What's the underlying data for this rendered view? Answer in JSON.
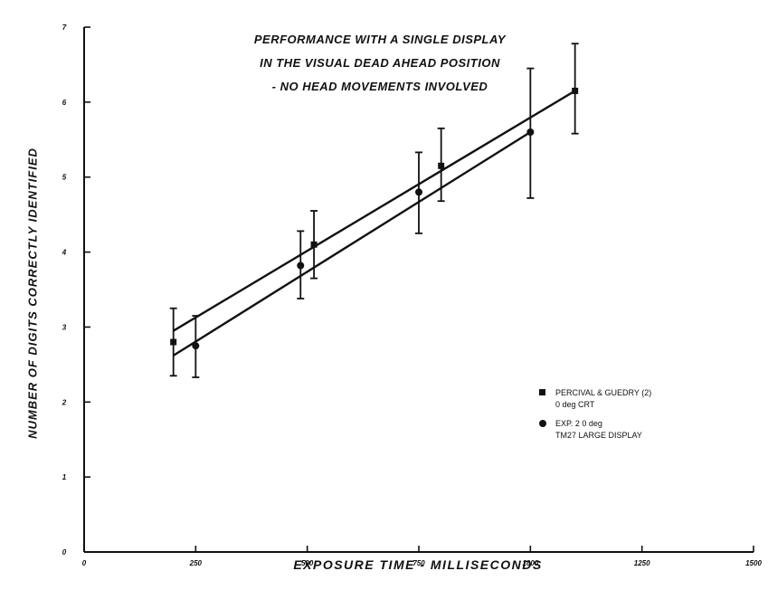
{
  "chart_data": {
    "type": "line",
    "title_lines": [
      "PERFORMANCE WITH A SINGLE DISPLAY",
      "IN THE VISUAL DEAD AHEAD POSITION",
      "- NO HEAD MOVEMENTS INVOLVED"
    ],
    "xlabel": "EXPOSURE TIME - MILLISECONDS",
    "ylabel": "NUMBER OF DIGITS CORRECTLY IDENTIFIED",
    "xlim": [
      0,
      1500
    ],
    "ylim": [
      0,
      7
    ],
    "x_ticks": [
      0,
      250,
      500,
      750,
      1000,
      1250,
      1500
    ],
    "x_tick_labels": [
      "0",
      "250",
      "500",
      "750",
      "1000",
      "1250",
      "1500"
    ],
    "y_ticks": [
      0,
      1,
      2,
      3,
      4,
      5,
      6,
      7
    ],
    "y_tick_labels": [
      "0",
      "1",
      "2",
      "3",
      "4",
      "5",
      "6",
      "7"
    ],
    "grid": false,
    "legend_position": "right",
    "series": [
      {
        "legend_lines": [
          "PERCIVAL & GUEDRY (2)",
          "0 deg CRT"
        ],
        "marker": "square",
        "color": "#111111",
        "points": [
          {
            "x": 200,
            "y": 2.8,
            "err_low": 2.35,
            "err_high": 3.25
          },
          {
            "x": 515,
            "y": 4.1,
            "err_low": 3.65,
            "err_high": 4.55
          },
          {
            "x": 800,
            "y": 5.15,
            "err_low": 4.68,
            "err_high": 5.65
          },
          {
            "x": 1100,
            "y": 6.15,
            "err_low": 5.58,
            "err_high": 6.78
          }
        ],
        "fit": [
          [
            200,
            2.95
          ],
          [
            1100,
            6.15
          ]
        ]
      },
      {
        "legend_lines": [
          "EXP. 2 0 deg",
          "TM27 LARGE DISPLAY"
        ],
        "marker": "circle",
        "color": "#111111",
        "points": [
          {
            "x": 250,
            "y": 2.75,
            "err_low": 2.33,
            "err_high": 3.15
          },
          {
            "x": 485,
            "y": 3.82,
            "err_low": 3.38,
            "err_high": 4.28
          },
          {
            "x": 750,
            "y": 4.8,
            "err_low": 4.25,
            "err_high": 5.33
          },
          {
            "x": 1000,
            "y": 5.6,
            "err_low": 4.72,
            "err_high": 6.45
          }
        ],
        "fit": [
          [
            200,
            2.62
          ],
          [
            1000,
            5.6
          ]
        ]
      }
    ]
  }
}
